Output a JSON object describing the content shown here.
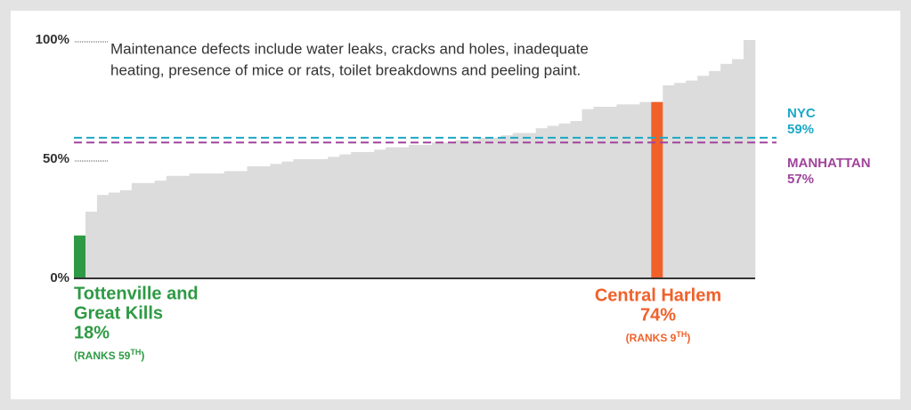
{
  "chart_data": {
    "type": "bar",
    "note_lines": [
      "Maintenance defects include water leaks, cracks and holes, inadequate",
      "heating, presence of mice or rats, toilet breakdowns and peeling paint."
    ],
    "values": [
      18,
      28,
      35,
      36,
      37,
      40,
      40,
      41,
      43,
      43,
      44,
      44,
      44,
      45,
      45,
      47,
      47,
      48,
      49,
      50,
      50,
      50,
      51,
      52,
      53,
      53,
      54,
      55,
      55,
      56,
      56,
      57,
      57,
      58,
      58,
      59,
      59,
      60,
      61,
      61,
      63,
      64,
      65,
      66,
      71,
      72,
      72,
      73,
      73,
      74,
      74,
      81,
      82,
      83,
      85,
      87,
      90,
      92,
      100
    ],
    "colors": [
      "#2e9a45",
      "#dcdcdc",
      "#dcdcdc",
      "#dcdcdc",
      "#dcdcdc",
      "#dcdcdc",
      "#dcdcdc",
      "#dcdcdc",
      "#dcdcdc",
      "#dcdcdc",
      "#dcdcdc",
      "#dcdcdc",
      "#dcdcdc",
      "#dcdcdc",
      "#dcdcdc",
      "#dcdcdc",
      "#dcdcdc",
      "#dcdcdc",
      "#dcdcdc",
      "#dcdcdc",
      "#dcdcdc",
      "#dcdcdc",
      "#dcdcdc",
      "#dcdcdc",
      "#dcdcdc",
      "#dcdcdc",
      "#dcdcdc",
      "#dcdcdc",
      "#dcdcdc",
      "#dcdcdc",
      "#dcdcdc",
      "#dcdcdc",
      "#dcdcdc",
      "#dcdcdc",
      "#dcdcdc",
      "#dcdcdc",
      "#dcdcdc",
      "#dcdcdc",
      "#dcdcdc",
      "#dcdcdc",
      "#dcdcdc",
      "#dcdcdc",
      "#dcdcdc",
      "#dcdcdc",
      "#dcdcdc",
      "#dcdcdc",
      "#dcdcdc",
      "#dcdcdc",
      "#dcdcdc",
      "#dcdcdc",
      "#f0612a",
      "#dcdcdc",
      "#dcdcdc",
      "#dcdcdc",
      "#dcdcdc",
      "#dcdcdc",
      "#dcdcdc",
      "#dcdcdc",
      "#dcdcdc"
    ],
    "ylim": [
      0,
      100
    ],
    "yticks": [
      {
        "value": 0,
        "label": "0%"
      },
      {
        "value": 50,
        "label": "50%"
      },
      {
        "value": 100,
        "label": "100%"
      }
    ],
    "reference_lines": [
      {
        "name": "NYC",
        "value": 59,
        "value_label": "59%",
        "color": "#1ba8c6"
      },
      {
        "name": "MANHATTAN",
        "value": 57,
        "value_label": "57%",
        "color": "#a0449b"
      }
    ],
    "annotations": [
      {
        "name_lines": [
          "Tottenville and",
          "Great Kills"
        ],
        "value_label": "18%",
        "rank": "(RANKS 59",
        "ordinal": "TH",
        "close": ")",
        "color": "#2e9a45"
      },
      {
        "name_lines": [
          "Central Harlem"
        ],
        "value_label": "74%",
        "rank": "(RANKS 9",
        "ordinal": "TH",
        "close": ")",
        "color": "#f0612a"
      }
    ]
  }
}
